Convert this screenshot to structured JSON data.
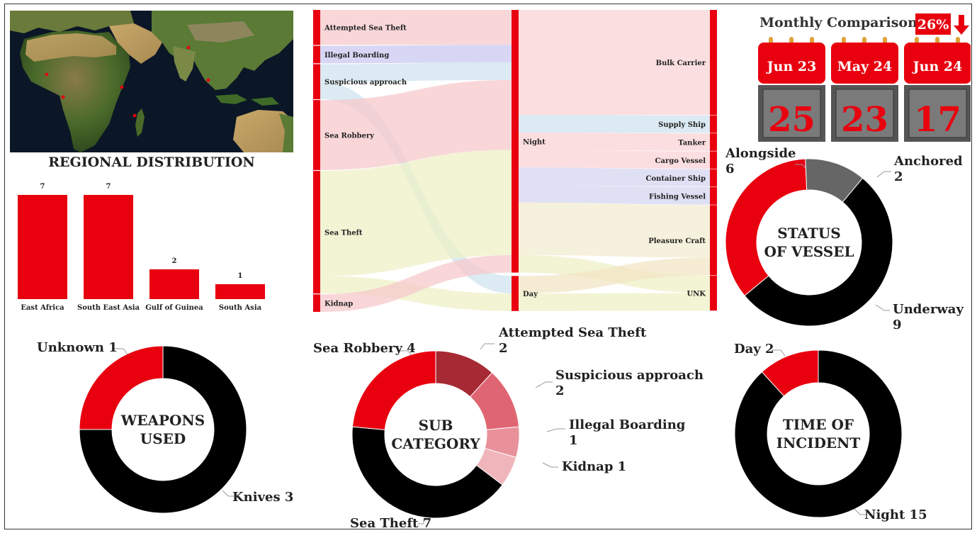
{
  "colors": {
    "red": "#e8000f",
    "black": "#000000",
    "grey": "#666666",
    "darkred": "#a52a33",
    "pink1": "#e06572",
    "pink2": "#e8919a",
    "pink3": "#f0b5bb"
  },
  "map": {
    "title": "REGIONAL DISTRIBUTION"
  },
  "chart_data": [
    {
      "id": "regional",
      "type": "bar",
      "title": "REGIONAL DISTRIBUTION",
      "categories": [
        "East Africa",
        "South East Asia",
        "Gulf of Guinea",
        "South Asia"
      ],
      "values": [
        7,
        7,
        2,
        1
      ],
      "value_labels": [
        "7",
        "7",
        "2",
        "1"
      ],
      "color": "#e8000f"
    },
    {
      "id": "sankey",
      "type": "sankey",
      "sources": [
        "Attempted Sea Theft",
        "Illegal Boarding",
        "Suspicious approach",
        "Sea Robbery",
        "Sea Theft",
        "Kidnap"
      ],
      "source_values": [
        2,
        1,
        2,
        4,
        7,
        1
      ],
      "times": [
        "Night",
        "Day"
      ],
      "time_values": [
        15,
        2
      ],
      "targets": [
        "Bulk Carrier",
        "Supply Ship",
        "Tanker",
        "Cargo Vessel",
        "Container Ship",
        "Fishing Vessel",
        "Pleasure Craft",
        "UNK"
      ],
      "target_values": [
        6,
        1,
        1,
        1,
        1,
        1,
        4,
        2
      ],
      "links_left": [
        {
          "source": "Attempted Sea Theft",
          "time": "Night",
          "value": 2
        },
        {
          "source": "Illegal Boarding",
          "time": "Night",
          "value": 1
        },
        {
          "source": "Suspicious approach",
          "time": "Night",
          "value": 1
        },
        {
          "source": "Suspicious approach",
          "time": "Day",
          "value": 1
        },
        {
          "source": "Sea Robbery",
          "time": "Night",
          "value": 4
        },
        {
          "source": "Sea Theft",
          "time": "Night",
          "value": 6
        },
        {
          "source": "Sea Theft",
          "time": "Day",
          "value": 1
        },
        {
          "source": "Kidnap",
          "time": "Night",
          "value": 1
        }
      ],
      "links_right": [
        {
          "time": "Night",
          "target": "Bulk Carrier",
          "value": 6
        },
        {
          "time": "Night",
          "target": "Supply Ship",
          "value": 1
        },
        {
          "time": "Night",
          "target": "Tanker",
          "value": 1
        },
        {
          "time": "Night",
          "target": "Cargo Vessel",
          "value": 1
        },
        {
          "time": "Night",
          "target": "Container Ship",
          "value": 1
        },
        {
          "time": "Night",
          "target": "Fishing Vessel",
          "value": 1
        },
        {
          "time": "Night",
          "target": "Pleasure Craft",
          "value": 3
        },
        {
          "time": "Night",
          "target": "UNK",
          "value": 1
        },
        {
          "time": "Day",
          "target": "Pleasure Craft",
          "value": 1
        },
        {
          "time": "Day",
          "target": "UNK",
          "value": 1
        }
      ]
    },
    {
      "id": "status",
      "type": "pie",
      "title": "STATUS OF VESSEL",
      "center": [
        "STATUS",
        "OF VESSEL"
      ],
      "slices": [
        {
          "label": "Alongside",
          "value": 6,
          "color": "#e8000f"
        },
        {
          "label": "Anchored",
          "value": 2,
          "color": "#666666"
        },
        {
          "label": "Underway",
          "value": 9,
          "color": "#000000"
        }
      ]
    },
    {
      "id": "weapons",
      "type": "pie",
      "title": "WEAPONS USED",
      "center": [
        "WEAPONS",
        "USED"
      ],
      "slices": [
        {
          "label": "Knives 3",
          "value": 3,
          "color": "#000000"
        },
        {
          "label": "Unknown 1",
          "value": 1,
          "color": "#e8000f"
        }
      ]
    },
    {
      "id": "subcat",
      "type": "pie",
      "title": "SUB CATEGORY",
      "center": [
        "SUB",
        "CATEGORY"
      ],
      "slices": [
        {
          "label": "Attempted Sea Theft",
          "sub": "2",
          "value": 2,
          "color": "#a52a33"
        },
        {
          "label": "Suspicious approach",
          "sub": "2",
          "value": 2,
          "color": "#e06572"
        },
        {
          "label": "Illegal Boarding",
          "sub": "1",
          "value": 1,
          "color": "#e8919a"
        },
        {
          "label": "Kidnap 1",
          "value": 1,
          "color": "#f0b5bb"
        },
        {
          "label": "Sea Theft 7",
          "value": 7,
          "color": "#000000"
        },
        {
          "label": "Sea Robbery 4",
          "value": 4,
          "color": "#e8000f"
        }
      ]
    },
    {
      "id": "time",
      "type": "pie",
      "title": "TIME OF INCIDENT",
      "center": [
        "TIME OF",
        "INCIDENT"
      ],
      "slices": [
        {
          "label": "Night 15",
          "value": 15,
          "color": "#000000"
        },
        {
          "label": "Day 2",
          "value": 2,
          "color": "#e8000f"
        }
      ]
    }
  ],
  "calendar": {
    "title": "Monthly Comparison",
    "change": "26%",
    "direction": "down",
    "months": [
      {
        "label": "Jun 23",
        "value": "25"
      },
      {
        "label": "May 24",
        "value": "23"
      },
      {
        "label": "Jun 24",
        "value": "17"
      }
    ]
  }
}
